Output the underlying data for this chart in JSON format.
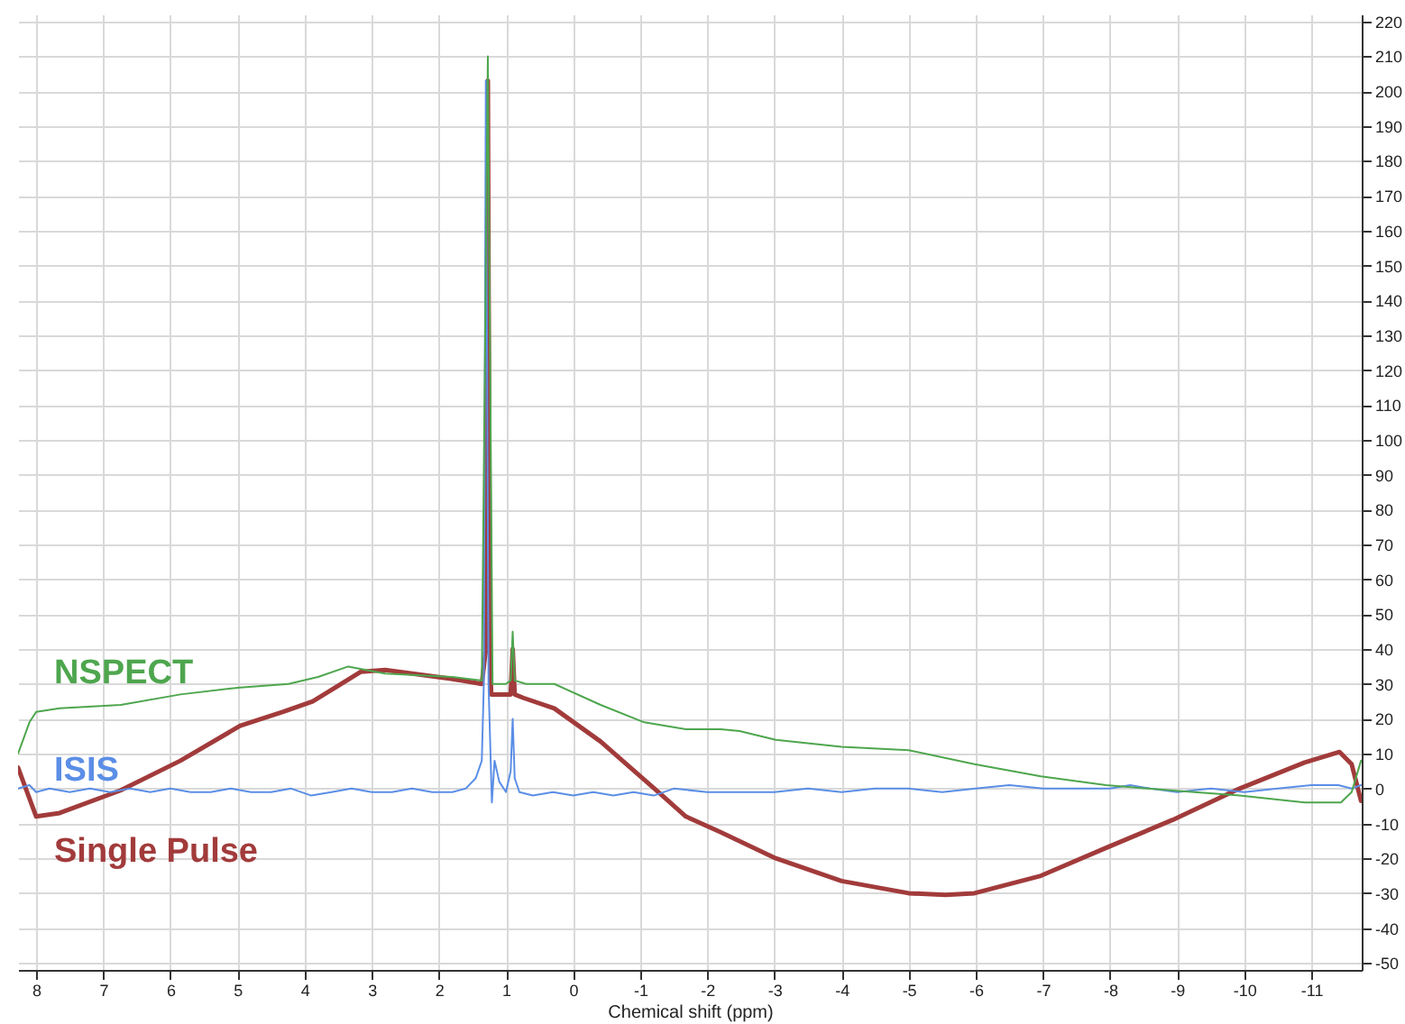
{
  "chart_data": {
    "type": "line",
    "xlabel": "Chemical shift (ppm)",
    "xlim": [
      8.27,
      -11.75
    ],
    "xticks": [
      8,
      7,
      6,
      5,
      4,
      3,
      2,
      1,
      0,
      -1,
      -2,
      -3,
      -4,
      -5,
      -6,
      -7,
      -8,
      -9,
      -10,
      -11
    ],
    "ylim": [
      -52,
      222
    ],
    "yticks": [
      -50,
      -40,
      -30,
      -20,
      -10,
      0,
      10,
      20,
      30,
      40,
      50,
      60,
      70,
      80,
      90,
      100,
      110,
      120,
      130,
      140,
      150,
      160,
      170,
      180,
      190,
      200,
      210,
      220
    ],
    "grid": true,
    "legend": false,
    "marker": "none",
    "line_style": "solid",
    "series": [
      {
        "name": "NSPECT",
        "color": "#4ea64e",
        "x": [
          8.27,
          8.1,
          8.0,
          7.65,
          6.74,
          5.85,
          4.96,
          4.24,
          3.8,
          3.35,
          2.8,
          1.8,
          1.36,
          1.27,
          1.2,
          1.0,
          0.93,
          0.9,
          0.87,
          0.7,
          0.28,
          -0.41,
          -1.06,
          -1.68,
          -2.2,
          -2.48,
          -3.02,
          -4.0,
          -5.0,
          -5.98,
          -6.97,
          -7.94,
          -8.9,
          -9.93,
          -10.9,
          -11.44,
          -11.6,
          -11.74
        ],
        "values": [
          10,
          19,
          22,
          23,
          24,
          27,
          29,
          30,
          32,
          35,
          33,
          32,
          31,
          210,
          30,
          30,
          31,
          45,
          31,
          30,
          30,
          24,
          19,
          17,
          17,
          16.5,
          14,
          12,
          11,
          7,
          3.5,
          1,
          -0.5,
          -2,
          -4,
          -4,
          -1,
          8
        ]
      },
      {
        "name": "ISIS",
        "color": "#5b8ee6",
        "x": [
          8.27,
          8.1,
          8.0,
          7.8,
          7.5,
          7.2,
          6.9,
          6.6,
          6.3,
          6.0,
          5.7,
          5.4,
          5.1,
          4.8,
          4.5,
          4.2,
          3.9,
          3.6,
          3.3,
          3.0,
          2.7,
          2.4,
          2.1,
          1.8,
          1.6,
          1.45,
          1.36,
          1.33,
          1.3,
          1.26,
          1.21,
          1.17,
          1.1,
          1.0,
          0.93,
          0.9,
          0.87,
          0.8,
          0.6,
          0.3,
          0.0,
          -0.3,
          -0.6,
          -0.9,
          -1.2,
          -1.5,
          -2.0,
          -2.5,
          -3.0,
          -3.5,
          -4.0,
          -4.5,
          -5.0,
          -5.5,
          -6.0,
          -6.5,
          -7.0,
          -7.5,
          -8.0,
          -8.3,
          -8.6,
          -9.0,
          -9.5,
          -10.0,
          -10.5,
          -11.0,
          -11.4,
          -11.6,
          -11.74
        ],
        "values": [
          0,
          1,
          -1,
          0,
          -1,
          0,
          -1,
          0,
          -1,
          0,
          -1,
          -1,
          0,
          -1,
          -1,
          0,
          -2,
          -1,
          0,
          -1,
          -1,
          0,
          -1,
          -1,
          0,
          3,
          8,
          30,
          203,
          30,
          -4,
          8,
          2,
          -1,
          5,
          20,
          3,
          -1,
          -2,
          -1,
          -2,
          -1,
          -2,
          -1,
          -2,
          0,
          -1,
          -1,
          -1,
          0,
          -1,
          0,
          0,
          -1,
          0,
          1,
          0,
          0,
          0,
          1,
          0,
          -1,
          0,
          -1,
          0,
          1,
          1,
          0,
          1
        ]
      },
      {
        "name": "Single Pulse",
        "color": "#a23b3b",
        "x": [
          8.27,
          8.0,
          7.65,
          6.74,
          5.85,
          4.96,
          4.32,
          3.88,
          3.16,
          2.8,
          1.82,
          1.36,
          1.3,
          1.27,
          1.24,
          1.22,
          1.0,
          0.93,
          0.9,
          0.87,
          0.74,
          0.28,
          -0.41,
          -1.33,
          -1.68,
          -2.2,
          -3.02,
          -4.0,
          -5.0,
          -5.55,
          -5.98,
          -6.97,
          -7.94,
          -8.93,
          -9.93,
          -10.9,
          -11.42,
          -11.6,
          -11.74
        ],
        "values": [
          6,
          -8,
          -7,
          -0.5,
          8,
          18,
          22,
          25,
          33.5,
          34,
          31.5,
          30,
          40,
          203,
          40,
          27,
          27,
          27,
          40,
          27,
          26,
          23,
          13.5,
          -2,
          -8,
          -12.5,
          -20,
          -26.5,
          -30,
          -30.5,
          -30,
          -25,
          -17,
          -9,
          0,
          7.5,
          10.5,
          7,
          -3.5
        ]
      }
    ]
  }
}
